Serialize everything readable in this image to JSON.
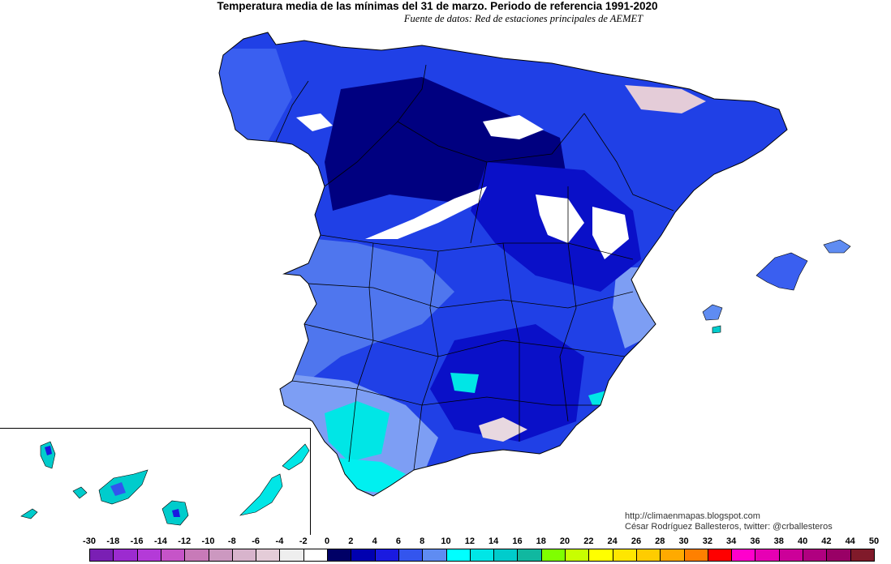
{
  "title": "Temperatura media de las mínimas del 31 de marzo. Periodo de referencia 1991-2020",
  "subtitle": "Fuente de datos: Red de estaciones principales de AEMET",
  "credits": {
    "blog": "http://climaenmapas.blogspot.com",
    "author": "César Rodríguez Ballesteros, twitter: @crballesteros"
  },
  "legend": {
    "ticks": [
      "-30",
      "-18",
      "-16",
      "-14",
      "-12",
      "-10",
      "-8",
      "-6",
      "-4",
      "-2",
      "0",
      "2",
      "4",
      "6",
      "8",
      "10",
      "12",
      "14",
      "16",
      "18",
      "20",
      "22",
      "24",
      "26",
      "28",
      "30",
      "32",
      "34",
      "36",
      "38",
      "40",
      "42",
      "44",
      "50"
    ],
    "colors": [
      "#7a1fb4",
      "#9c2bd0",
      "#b43ad8",
      "#c654c8",
      "#c87ab8",
      "#cc98c0",
      "#d8b4cc",
      "#e4ccd8",
      "#eeeeee",
      "#ffffff",
      "#000066",
      "#0000b0",
      "#1a1ae0",
      "#3355ee",
      "#5f8cf2",
      "#00ffff",
      "#00e6e6",
      "#00cccc",
      "#10b8a0",
      "#7fff00",
      "#c8ff00",
      "#ffff00",
      "#ffe600",
      "#ffcc00",
      "#ffaa00",
      "#ff8000",
      "#ff0000",
      "#ff00cc",
      "#e600b4",
      "#cc0099",
      "#b00080",
      "#990066",
      "#801a2a"
    ]
  },
  "map": {
    "palette": {
      "very_cold": "#000080",
      "cold": "#0a10c8",
      "mid": "#2040e6",
      "mild": "#4f76ee",
      "warm": "#7d9ef4",
      "coast_cyan": "#00f0f0",
      "snow_white": "#ffffff",
      "pyrenees_pink": "#e4ccd8",
      "border": "#000000"
    }
  }
}
